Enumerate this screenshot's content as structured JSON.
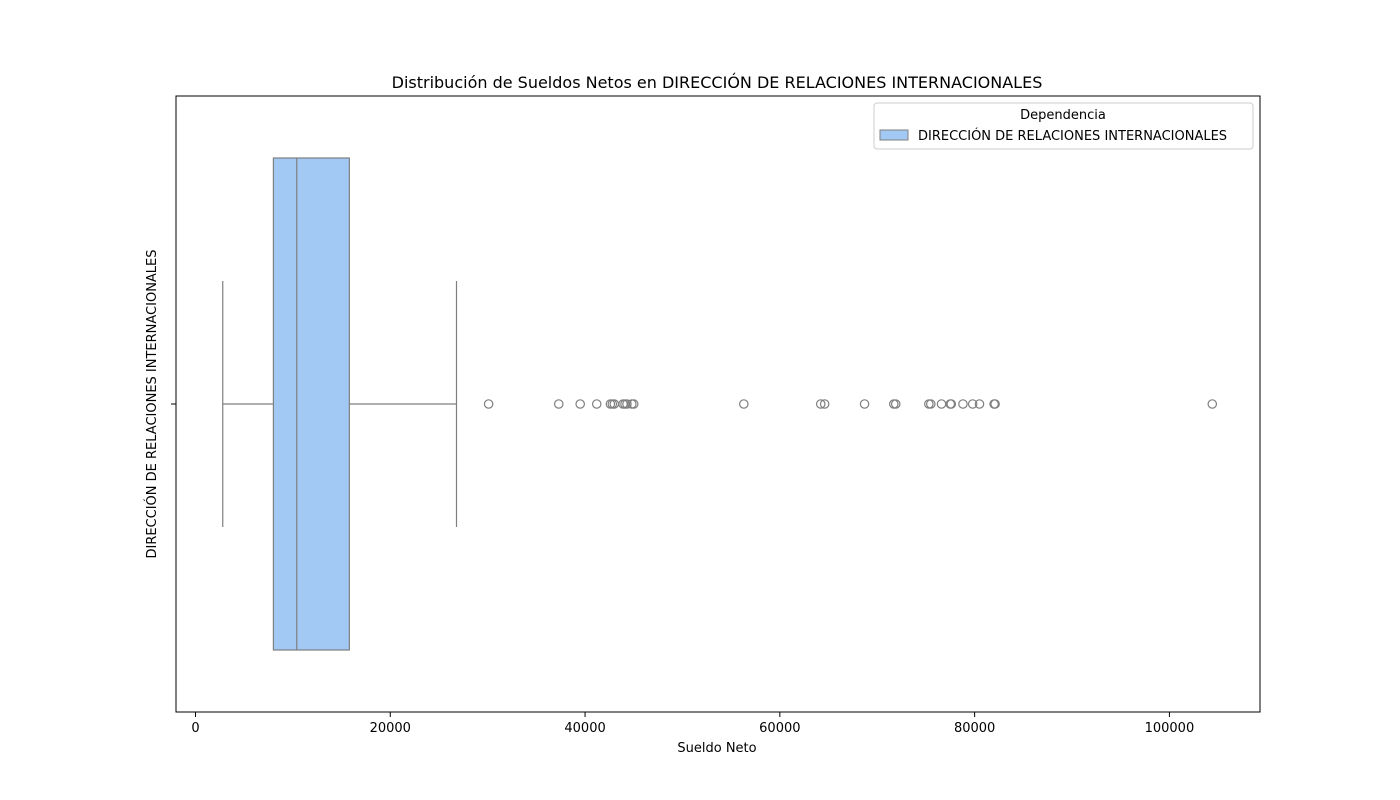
{
  "chart_data": {
    "type": "box",
    "title": "Distribución de Sueldos Netos en DIRECCIÓN DE RELACIONES INTERNACIONALES",
    "xlabel": "Sueldo Neto",
    "ylabel": "DIRECCIÓN DE RELACIONES INTERNACIONALES",
    "xlim": [
      -2000,
      109300
    ],
    "x_ticks": [
      0,
      20000,
      40000,
      60000,
      80000,
      100000
    ],
    "x_tick_labels": [
      "0",
      "20000",
      "40000",
      "60000",
      "80000",
      "100000"
    ],
    "legend": {
      "title": "Dependencia",
      "position": "top-right",
      "entries": [
        "DIRECCIÓN DE RELACIONES INTERNACIONALES"
      ]
    },
    "series": [
      {
        "name": "DIRECCIÓN DE RELACIONES INTERNACIONALES",
        "color": "#a1c9f4",
        "whisker_low": 2800,
        "q1": 8000,
        "median": 10400,
        "q3": 15800,
        "whisker_high": 26800,
        "outliers": [
          30100,
          37300,
          39500,
          41200,
          42600,
          42800,
          43000,
          43900,
          44100,
          44300,
          44800,
          45000,
          56300,
          64200,
          64600,
          68700,
          71700,
          71900,
          75300,
          75500,
          76600,
          77500,
          77600,
          78800,
          79800,
          80500,
          82000,
          82100,
          104400
        ]
      }
    ],
    "grid": false
  }
}
